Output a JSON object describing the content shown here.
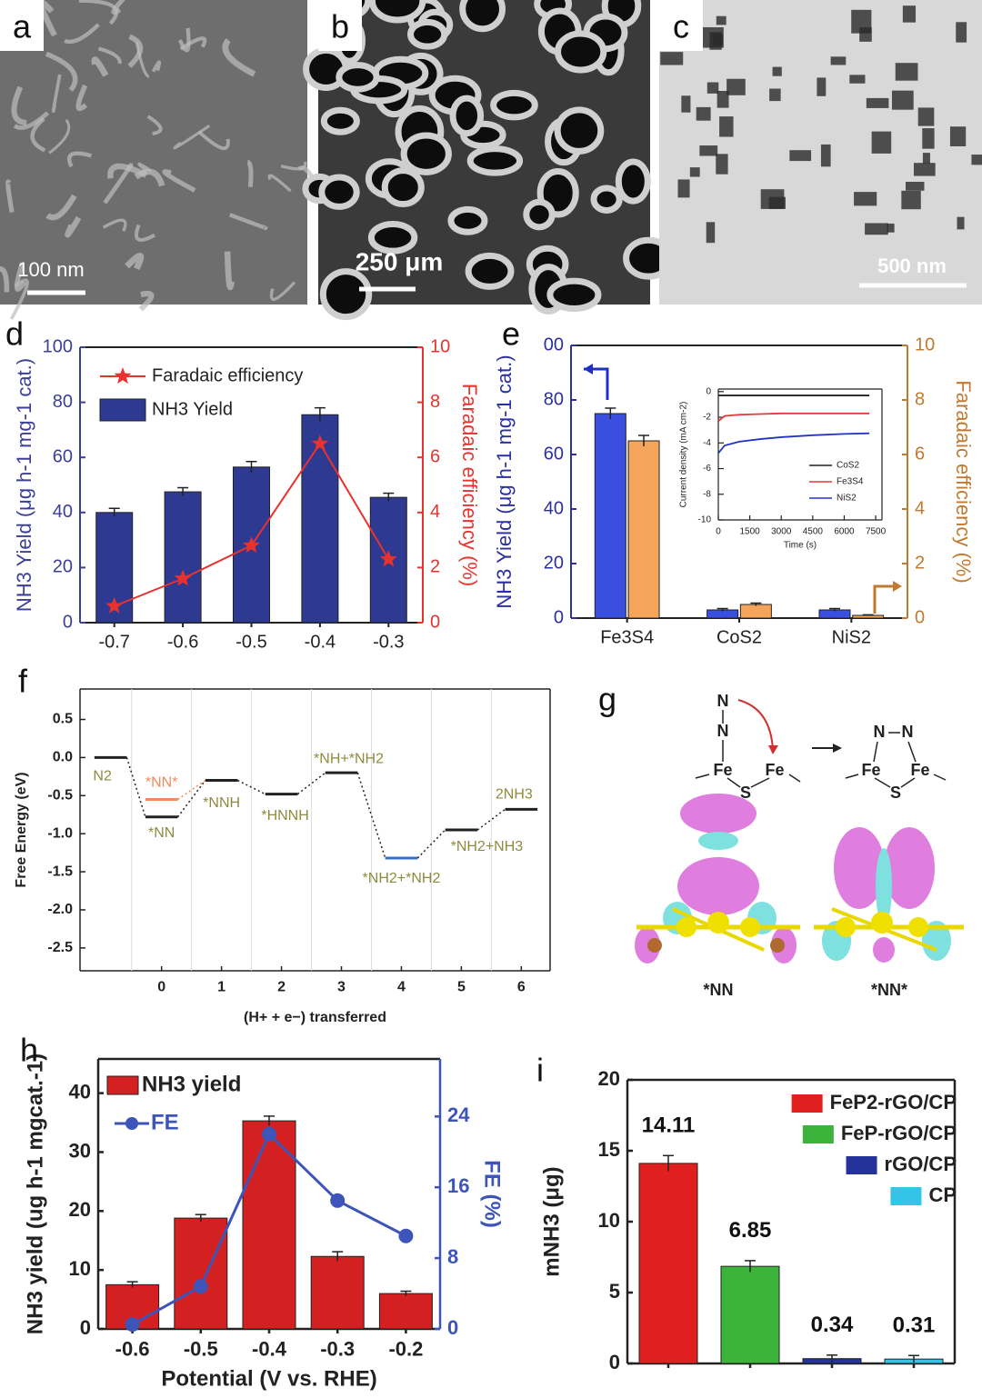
{
  "images": [
    {
      "label": "a",
      "scale_bar": "100 nm"
    },
    {
      "label": "b",
      "scale_bar": "250 μm"
    },
    {
      "label": "c",
      "scale_bar": "500 nm"
    }
  ],
  "chart_data": [
    {
      "panel": "d",
      "type": "bar",
      "ylabel": "NH3 Yield (μg h-1 mg-1 cat.)",
      "y2label": "Faradaic efficiency (%)",
      "categories": [
        "-0.7",
        "-0.6",
        "-0.5",
        "-0.4",
        "-0.3"
      ],
      "series": [
        {
          "name": "Faradaic efficiency",
          "kind": "line",
          "axis": "y2",
          "color": "#e8322e",
          "values": [
            0.6,
            1.6,
            2.8,
            6.5,
            2.3
          ]
        },
        {
          "name": "NH3 Yield",
          "kind": "bar",
          "color": "#2e3991",
          "values": [
            40,
            47.5,
            56.5,
            75.5,
            45.5
          ],
          "errors": [
            1.5,
            1.5,
            2,
            2.5,
            1.5
          ]
        }
      ],
      "ylim": [
        0,
        100
      ],
      "yticks": [
        0,
        20,
        40,
        60,
        80,
        100
      ],
      "y2lim": [
        0,
        10
      ],
      "y2ticks": [
        0,
        2,
        4,
        6,
        8,
        10
      ],
      "ycolor": "#3b3f98",
      "y2color": "#e8322e"
    },
    {
      "panel": "e",
      "type": "bar",
      "ylabel": "NH3 Yield (μg h-1 mg-1 cat.)",
      "y2label": "Faradaic efficiency (%)",
      "categories": [
        "Fe3S4",
        "CoS2",
        "NiS2"
      ],
      "series": [
        {
          "kind": "bar",
          "color": "#3a4fe0",
          "values": [
            75,
            3,
            3
          ],
          "errors": [
            2,
            0.5,
            0.5
          ]
        },
        {
          "kind": "bar",
          "axis": "y2",
          "color": "#f5a55a",
          "values": [
            6.5,
            0.5,
            0.1
          ],
          "errors": [
            0.2,
            0.05,
            0.02
          ]
        }
      ],
      "ylim": [
        0,
        100
      ],
      "yticks": [
        0,
        20,
        40,
        60,
        80,
        {
          "value": 100,
          "label": "00"
        }
      ],
      "y2lim": [
        0,
        10
      ],
      "y2ticks": [
        0,
        2,
        4,
        6,
        8,
        10
      ],
      "ycolor": "#2b2fa0",
      "y2color": "#c07a30"
    },
    {
      "type": "line",
      "ylabel": "Current density (mA cm-2)",
      "xlabel": "Time (s)",
      "x": [
        0,
        300,
        1000,
        2000,
        3000,
        4500,
        6000,
        7200
      ],
      "series": [
        {
          "name": "CoS2",
          "color": "#222222",
          "values": [
            -0.3,
            -0.3,
            -0.3,
            -0.3,
            -0.3,
            -0.3,
            -0.3,
            -0.3
          ]
        },
        {
          "name": "Fe3S4",
          "color": "#e03a3a",
          "values": [
            -2.3,
            -1.9,
            -1.8,
            -1.75,
            -1.7,
            -1.7,
            -1.7,
            -1.7
          ]
        },
        {
          "name": "NiS2",
          "color": "#2233cc",
          "values": [
            -4.8,
            -4.2,
            -3.9,
            -3.7,
            -3.55,
            -3.4,
            -3.3,
            -3.25
          ]
        }
      ],
      "xlim": [
        0,
        7800
      ],
      "xticks": [
        0,
        1500,
        3000,
        4500,
        6000,
        7500
      ],
      "ylim": [
        -10,
        0.2
      ],
      "yticks": [
        0,
        -2,
        -4,
        -6,
        -8,
        -10
      ]
    },
    {
      "panel": "f",
      "type": "step",
      "ylabel": "Free Energy (eV)",
      "xlabel": "(H+ + e−) transferred",
      "x": [
        -0.85,
        0,
        1,
        2,
        3,
        4,
        5,
        6
      ],
      "values": [
        0,
        -0.78,
        -0.3,
        -0.48,
        -0.2,
        -1.32,
        -0.95,
        -0.68
      ],
      "labels": [
        "N2",
        "*NN",
        "*NNH",
        "*HNNH",
        "*NH+*NH2",
        "*NH2+*NH2",
        "*NH2+NH3",
        "2NH3"
      ],
      "colors": [
        "#222222",
        "#222222",
        "#222222",
        "#222222",
        "#222222",
        "#3a6fc8",
        "#222222",
        "#222222"
      ],
      "intermediate": {
        "x": 0,
        "value": -0.55,
        "label": "*NN*",
        "color": "#f08a5a"
      },
      "xlim": [
        -1.36,
        6.48
      ],
      "xticks": [
        0,
        1,
        2,
        3,
        4,
        5,
        6
      ],
      "ylim": [
        -2.8,
        0.9
      ],
      "yticks": [
        0.5,
        {
          "value": 0,
          "label": "0.0"
        },
        -0.5,
        {
          "value": -1,
          "label": "-1.0"
        },
        -1.5,
        {
          "value": -2,
          "label": "-2.0"
        },
        -2.5
      ]
    },
    {
      "panel": "h",
      "type": "bar",
      "xlabel": "Potential (V vs. RHE)",
      "ylabel": "NH3 yield (ug h-1 mgcat.-1)",
      "y2label": "FE (%)",
      "categories": [
        "-0.6",
        "-0.5",
        "-0.4",
        "-0.3",
        "-0.2"
      ],
      "series": [
        {
          "name": "NH3 yield",
          "kind": "bar",
          "color": "#d42020",
          "values": [
            7.5,
            18.8,
            35.3,
            12.3,
            6
          ],
          "errors": [
            0.5,
            0.6,
            0.8,
            0.8,
            0.4
          ]
        },
        {
          "name": "FE",
          "kind": "line",
          "axis": "y2",
          "color": "#3d55b8",
          "values": [
            0.5,
            4.8,
            22,
            14.5,
            10.5
          ]
        }
      ],
      "ylim": [
        0,
        45.8
      ],
      "yticks": [
        0,
        10,
        20,
        30,
        40
      ],
      "y2lim": [
        0,
        30.5
      ],
      "y2ticks": [
        0,
        8,
        16,
        24
      ],
      "y2color": "#3d55b8"
    },
    {
      "panel": "i",
      "type": "bar",
      "ylabel": "mNH3 (μg)",
      "categories": [
        null,
        null,
        null,
        null
      ],
      "values": [
        14.11,
        6.85,
        0.34,
        0.31
      ],
      "errors": [
        0.55,
        0.4,
        0.25,
        0.25
      ],
      "colors": [
        "#e0201e",
        "#3cb43c",
        "#24339a",
        "#35c4e8"
      ],
      "legend": [
        "FeP2-rGO/CP",
        "FeP-rGO/CP",
        "rGO/CP",
        "CP"
      ],
      "ylim": [
        0,
        20
      ],
      "yticks": [
        0,
        5,
        10,
        15,
        20
      ]
    }
  ],
  "diagram_g": {
    "panel": "g",
    "left": {
      "atoms": [
        "N",
        "N",
        "Fe",
        "S",
        "Fe"
      ],
      "caption": "*NN"
    },
    "right": {
      "atoms": [
        "N",
        "N",
        "Fe",
        "S",
        "Fe"
      ],
      "caption": "*NN*"
    }
  }
}
